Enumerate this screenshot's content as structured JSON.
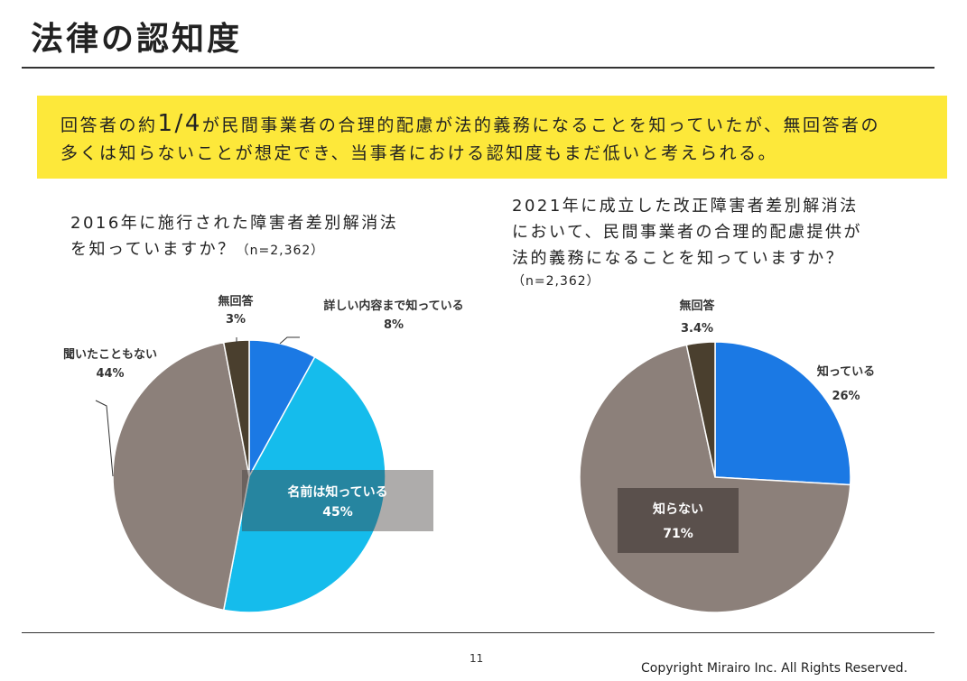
{
  "title": "法律の認知度",
  "banner": {
    "line1_pre": "回答者の約",
    "line1_big": "1/4",
    "line1_post": "が民間事業者の合理的配慮が法的義務になることを知っていたが、無回答者の",
    "line2": "多くは知らないことが想定でき、当事者における認知度もまだ低いと考えられる。"
  },
  "chart_data": [
    {
      "type": "pie",
      "title_line1": "2016年に施行された障害者差別解消法",
      "title_line2": "を知っていますか？",
      "sample_size": "（n=2,362）",
      "slices": [
        {
          "label": "詳しい内容まで知っている",
          "value": 8,
          "value_label": "8%",
          "color": "#1b79e4"
        },
        {
          "label": "名前は知っている",
          "value": 45,
          "value_label": "45%",
          "color": "#15bcec"
        },
        {
          "label": "聞いたこともない",
          "value": 44,
          "value_label": "44%",
          "color": "#8c807a"
        },
        {
          "label": "無回答",
          "value": 3,
          "value_label": "3%",
          "color": "#4a3f2e"
        }
      ]
    },
    {
      "type": "pie",
      "title_line1": "2021年に成立した改正障害者差別解消法",
      "title_line2": "において、民間事業者の合理的配慮提供が",
      "title_line3": "法的義務になることを知っていますか？",
      "sample_size": "（n=2,362）",
      "slices": [
        {
          "label": "知っている",
          "value": 26,
          "value_label": "26%",
          "color": "#1b79e4"
        },
        {
          "label": "知らない",
          "value": 71,
          "value_label": "71%",
          "color": "#8c807a"
        },
        {
          "label": "無回答",
          "value": 3.4,
          "value_label": "3.4%",
          "color": "#4a3f2e"
        }
      ]
    }
  ],
  "footer": {
    "page_number": "11",
    "copyright": "Copyright Mirairo Inc. All Rights Reserved."
  }
}
